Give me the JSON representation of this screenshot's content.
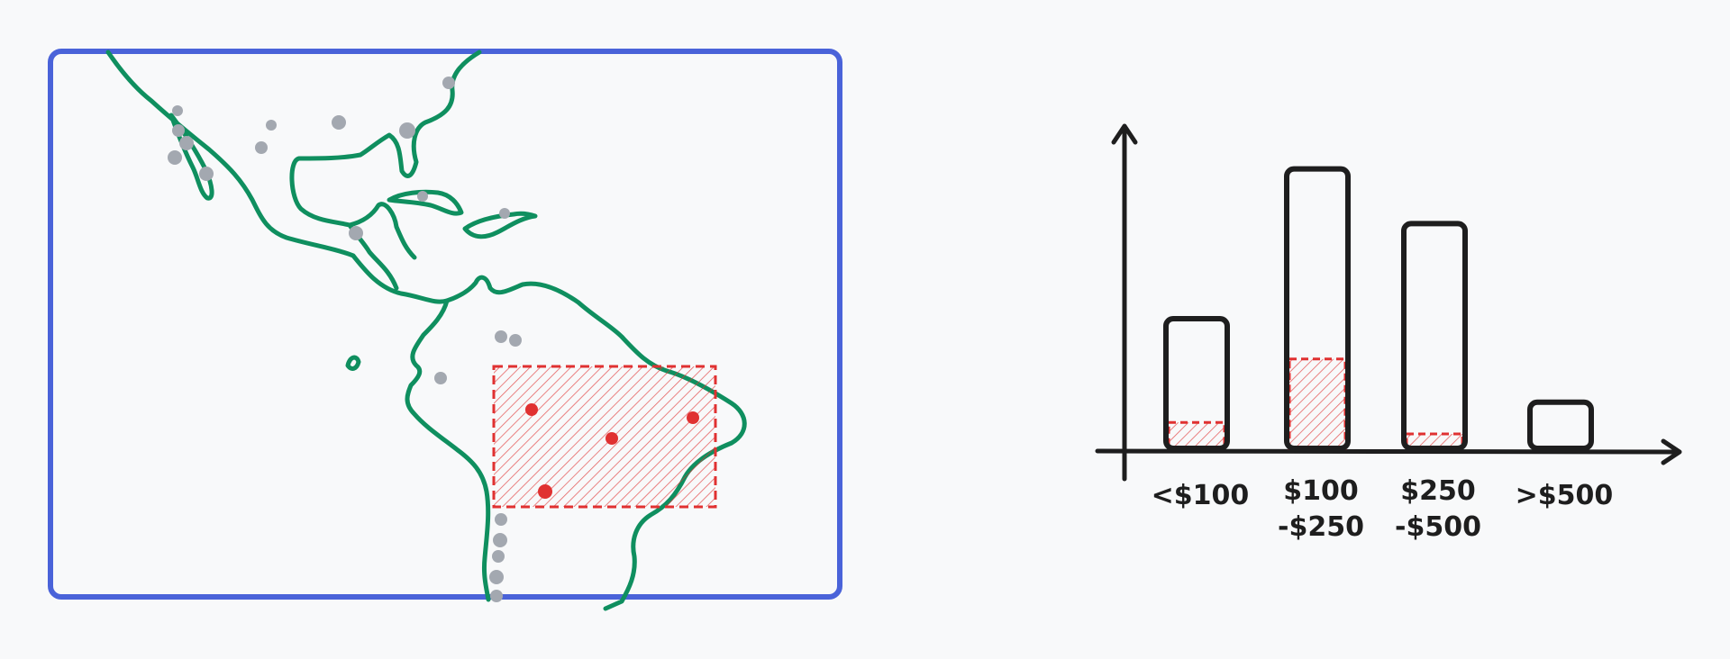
{
  "colors": {
    "background": "#f8f9fa",
    "map_frame": "#4a63d9",
    "coastline": "#0f8f5f",
    "gray_dot": "#a3a8b0",
    "highlight": "#e03131",
    "ink": "#1e1e1e"
  },
  "chart_data": {
    "type": "bar",
    "categories": [
      "<$100",
      "$100 -$250",
      "$250 -$500",
      ">$500"
    ],
    "category_lines": [
      [
        "<$100"
      ],
      [
        "$100",
        "-$250"
      ],
      [
        "$250",
        "-$500"
      ],
      [
        ">$500"
      ]
    ],
    "total_values": [
      0.45,
      0.97,
      0.78,
      0.16
    ],
    "highlighted_values": [
      0.09,
      0.31,
      0.05,
      0.0
    ],
    "value_unit": "relative height (tallest bar ≈ 1)",
    "axes": "x and y arrows, no tick labels"
  }
}
